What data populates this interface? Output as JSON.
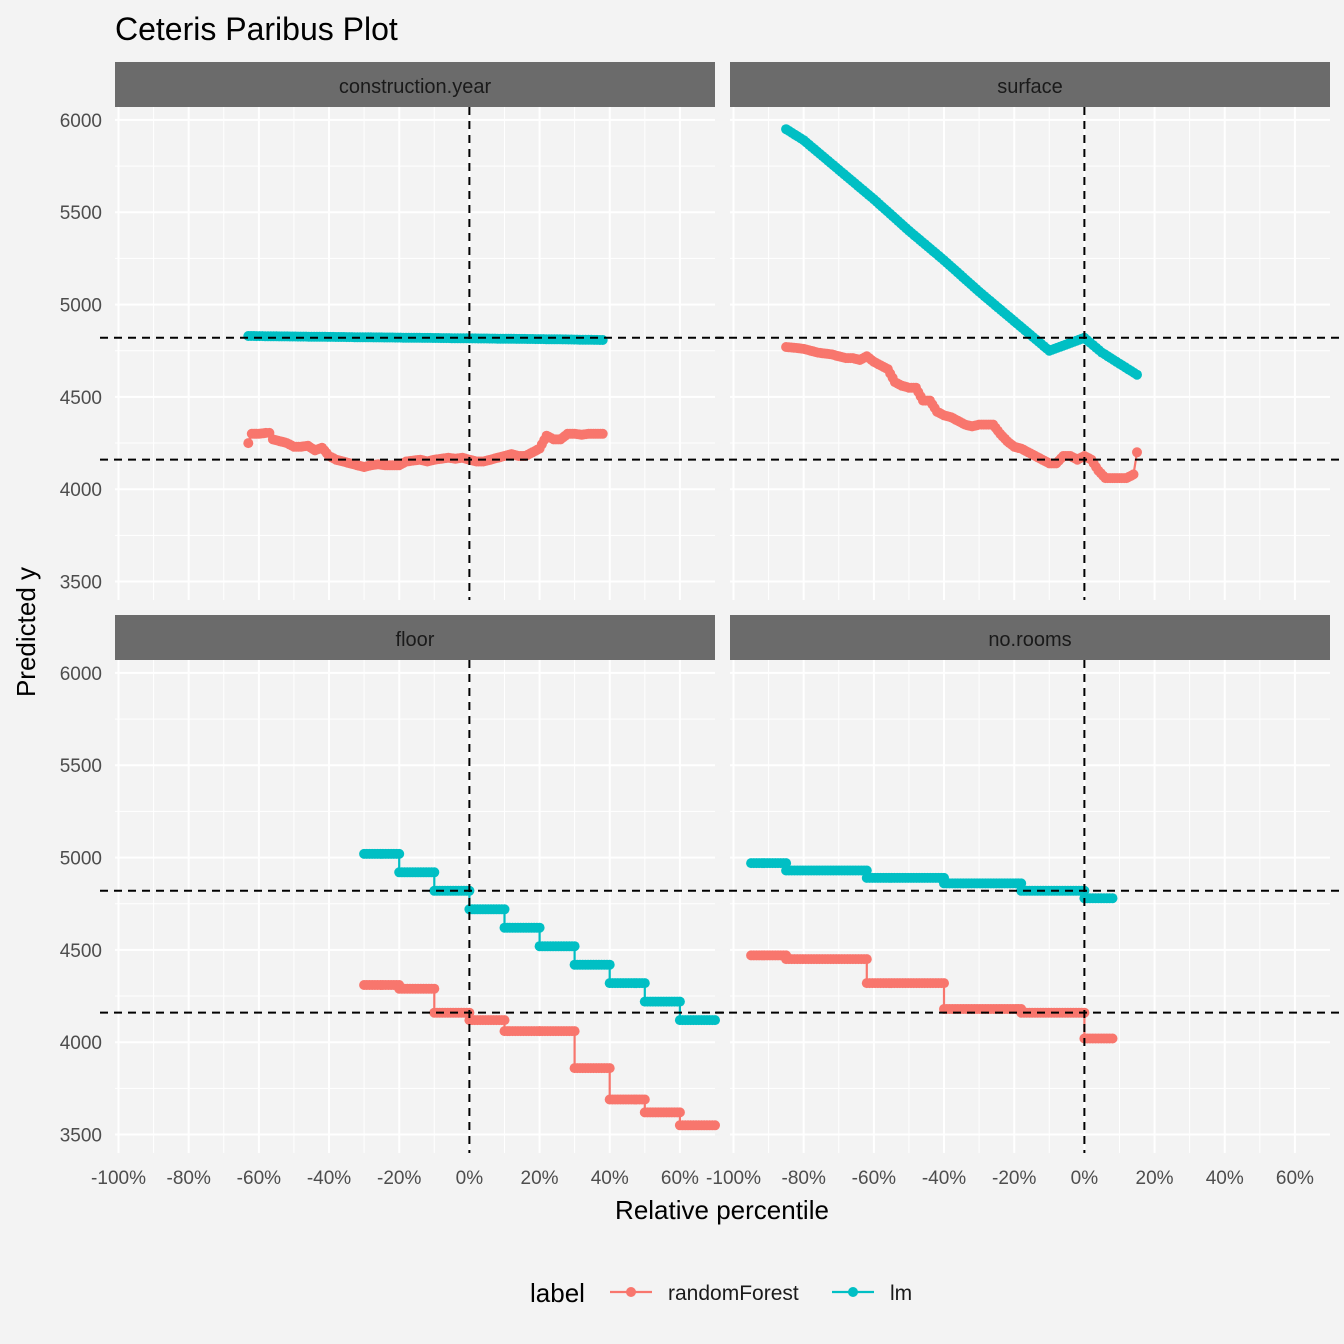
{
  "chart_data": {
    "type": "line",
    "title": "Ceteris Paribus Plot",
    "xlabel": "Relative percentile",
    "ylabel": "Predicted y",
    "x_ticks": [
      "-100%",
      "-80%",
      "-60%",
      "-40%",
      "-20%",
      "0%",
      "20%",
      "40%",
      "60%"
    ],
    "x_tick_values": [
      -100,
      -80,
      -60,
      -40,
      -20,
      0,
      20,
      40,
      60
    ],
    "y_ticks": [
      "3500",
      "4000",
      "4500",
      "5000",
      "5500",
      "6000"
    ],
    "y_tick_values": [
      3500,
      4000,
      4500,
      5000,
      5500,
      6000
    ],
    "xlim": [
      -101,
      70
    ],
    "ylim": [
      3400,
      6070
    ],
    "reference_lines": {
      "x": 0,
      "y": [
        4820,
        4160
      ]
    },
    "legend": {
      "title": "label",
      "position": "bottom",
      "entries": [
        {
          "name": "randomForest",
          "color": "#F8766D"
        },
        {
          "name": "lm",
          "color": "#00BFC4"
        }
      ]
    },
    "panels": [
      {
        "name": "construction.year",
        "series": [
          {
            "name": "lm",
            "x": [
              -63,
              -55,
              -45,
              -35,
              -25,
              -15,
              -5,
              0,
              5,
              15,
              25,
              38
            ],
            "y": [
              4830,
              4828,
              4826,
              4824,
              4822,
              4820,
              4818,
              4817,
              4816,
              4814,
              4812,
              4808
            ]
          },
          {
            "name": "randomForest",
            "x": [
              -63,
              -62,
              -60,
              -58,
              -57,
              -56,
              -54,
              -52,
              -50,
              -48,
              -46,
              -44,
              -42,
              -40,
              -38,
              -36,
              -34,
              -32,
              -30,
              -28,
              -26,
              -24,
              -22,
              -20,
              -18,
              -16,
              -14,
              -12,
              -10,
              -8,
              -6,
              -4,
              -2,
              0,
              2,
              4,
              6,
              8,
              10,
              12,
              14,
              16,
              18,
              20,
              22,
              24,
              26,
              28,
              30,
              32,
              34,
              36,
              38
            ],
            "y": [
              4250,
              4300,
              4300,
              4305,
              4305,
              4270,
              4260,
              4250,
              4230,
              4230,
              4235,
              4210,
              4225,
              4180,
              4160,
              4150,
              4140,
              4130,
              4120,
              4130,
              4135,
              4130,
              4130,
              4130,
              4150,
              4155,
              4160,
              4150,
              4160,
              4165,
              4170,
              4165,
              4170,
              4160,
              4150,
              4150,
              4160,
              4170,
              4180,
              4190,
              4180,
              4180,
              4200,
              4220,
              4290,
              4270,
              4270,
              4300,
              4300,
              4295,
              4300,
              4300,
              4300
            ]
          }
        ]
      },
      {
        "name": "surface",
        "series": [
          {
            "name": "lm",
            "x": [
              -85,
              -80,
              -70,
              -60,
              -50,
              -40,
              -30,
              -20,
              -10,
              0,
              5,
              10,
              15
            ],
            "y": [
              5950,
              5890,
              5730,
              5570,
              5400,
              5240,
              5070,
              4910,
              4750,
              4820,
              4740,
              4680,
              4620
            ]
          },
          {
            "name": "randomForest",
            "x": [
              -85,
              -82,
              -80,
              -78,
              -76,
              -74,
              -72,
              -70,
              -68,
              -66,
              -64,
              -62,
              -60,
              -58,
              -56,
              -54,
              -52,
              -50,
              -48,
              -46,
              -44,
              -42,
              -40,
              -38,
              -36,
              -34,
              -32,
              -30,
              -28,
              -26,
              -24,
              -22,
              -20,
              -18,
              -16,
              -14,
              -12,
              -10,
              -8,
              -6,
              -4,
              -2,
              0,
              2,
              4,
              6,
              8,
              10,
              12,
              14,
              15
            ],
            "y": [
              4770,
              4765,
              4760,
              4750,
              4740,
              4735,
              4730,
              4720,
              4710,
              4710,
              4700,
              4720,
              4690,
              4670,
              4650,
              4580,
              4560,
              4550,
              4550,
              4480,
              4480,
              4420,
              4400,
              4390,
              4370,
              4350,
              4340,
              4350,
              4350,
              4350,
              4300,
              4260,
              4230,
              4220,
              4200,
              4180,
              4160,
              4140,
              4140,
              4180,
              4180,
              4160,
              4180,
              4160,
              4100,
              4060,
              4060,
              4060,
              4060,
              4080,
              4200
            ]
          }
        ]
      },
      {
        "name": "floor",
        "series": [
          {
            "name": "lm",
            "x": [
              -30,
              -20,
              -20,
              -10,
              -10,
              0,
              0,
              10,
              10,
              20,
              20,
              30,
              30,
              40,
              40,
              50,
              50,
              60,
              60,
              70
            ],
            "y": [
              5020,
              5020,
              4920,
              4920,
              4820,
              4820,
              4720,
              4720,
              4620,
              4620,
              4520,
              4520,
              4420,
              4420,
              4320,
              4320,
              4220,
              4220,
              4120,
              4120
            ]
          },
          {
            "name": "randomForest",
            "x": [
              -30,
              -20,
              -20,
              -10,
              -10,
              0,
              0,
              10,
              10,
              20,
              20,
              30,
              30,
              40,
              40,
              50,
              50,
              60,
              60,
              70
            ],
            "y": [
              4310,
              4310,
              4290,
              4290,
              4160,
              4160,
              4120,
              4120,
              4060,
              4060,
              4060,
              4060,
              3860,
              3860,
              3690,
              3690,
              3620,
              3620,
              3550,
              3550
            ]
          }
        ]
      },
      {
        "name": "no.rooms",
        "series": [
          {
            "name": "lm",
            "x": [
              -95,
              -85,
              -85,
              -62,
              -62,
              -40,
              -40,
              -18,
              -18,
              0,
              0,
              8
            ],
            "y": [
              4970,
              4970,
              4930,
              4930,
              4890,
              4890,
              4860,
              4860,
              4820,
              4820,
              4780,
              4780
            ]
          },
          {
            "name": "randomForest",
            "x": [
              -95,
              -85,
              -85,
              -62,
              -62,
              -40,
              -40,
              -18,
              -18,
              0,
              0,
              8
            ],
            "y": [
              4470,
              4470,
              4450,
              4450,
              4320,
              4320,
              4180,
              4180,
              4160,
              4160,
              4020,
              4020
            ]
          }
        ]
      }
    ]
  }
}
